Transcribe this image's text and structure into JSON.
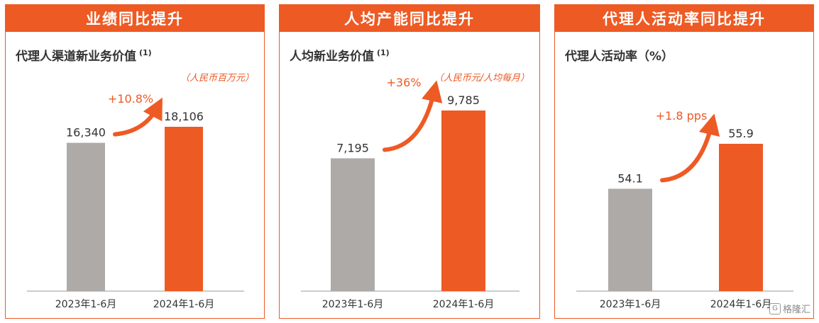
{
  "panels": [
    {
      "header": "业绩同比提升",
      "title": "代理人渠道新业务价值",
      "footnote": "(1)",
      "unit": "（人民币百万元）",
      "change": "+10.8%"
    },
    {
      "header": "人均产能同比提升",
      "title": "人均新业务价值",
      "footnote": "(1)",
      "unit": "（人民币元/人均每月）",
      "change": "+36%"
    },
    {
      "header": "代理人活动率同比提升",
      "title": "代理人活动率（%）",
      "footnote": "",
      "unit": "",
      "change": "+1.8 pps"
    }
  ],
  "colors": {
    "accent": "#ee5a24",
    "gray_bar": "#aeaaa8",
    "text": "#333333"
  },
  "watermark": {
    "icon": "brand-logo-icon",
    "text": "格隆汇"
  },
  "chart_data": [
    {
      "type": "bar",
      "title": "代理人渠道新业务价值",
      "categories": [
        "2023年1-6月",
        "2024年1-6月"
      ],
      "values": [
        16340,
        18106
      ],
      "value_labels": [
        "16,340",
        "18,106"
      ],
      "ylabel": "人民币百万元",
      "annotation": "+10.8%"
    },
    {
      "type": "bar",
      "title": "人均新业务价值",
      "categories": [
        "2023年1-6月",
        "2024年1-6月"
      ],
      "values": [
        7195,
        9785
      ],
      "value_labels": [
        "7,195",
        "9,785"
      ],
      "ylabel": "人民币元/人均每月",
      "annotation": "+36%"
    },
    {
      "type": "bar",
      "title": "代理人活动率（%）",
      "categories": [
        "2023年1-6月",
        "2024年1-6月"
      ],
      "values": [
        54.1,
        55.9
      ],
      "value_labels": [
        "54.1",
        "55.9"
      ],
      "ylabel": "%",
      "annotation": "+1.8 pps"
    }
  ]
}
